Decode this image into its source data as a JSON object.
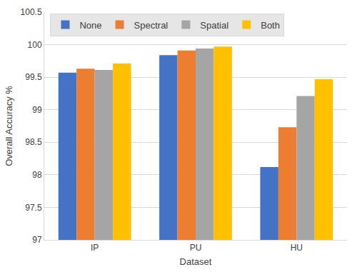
{
  "chart_data": {
    "type": "bar",
    "x_label": "Dataset",
    "y_label": "Overall Accuracy %",
    "categories": [
      "IP",
      "PU",
      "HU"
    ],
    "series": [
      {
        "name": "None",
        "color": "#4472c4",
        "values": [
          99.57,
          99.84,
          98.12
        ]
      },
      {
        "name": "Spectral",
        "color": "#ed7d31",
        "values": [
          99.63,
          99.91,
          98.73
        ]
      },
      {
        "name": "Spatial",
        "color": "#a5a5a5",
        "values": [
          99.61,
          99.94,
          99.21
        ]
      },
      {
        "name": "Both",
        "color": "#ffc000",
        "values": [
          99.71,
          99.97,
          99.47
        ]
      }
    ],
    "ylim": [
      97,
      100.5
    ],
    "yticks": [
      97,
      97.5,
      98,
      98.5,
      99,
      99.5,
      100,
      100.5
    ],
    "grid": true,
    "legend": "top"
  }
}
